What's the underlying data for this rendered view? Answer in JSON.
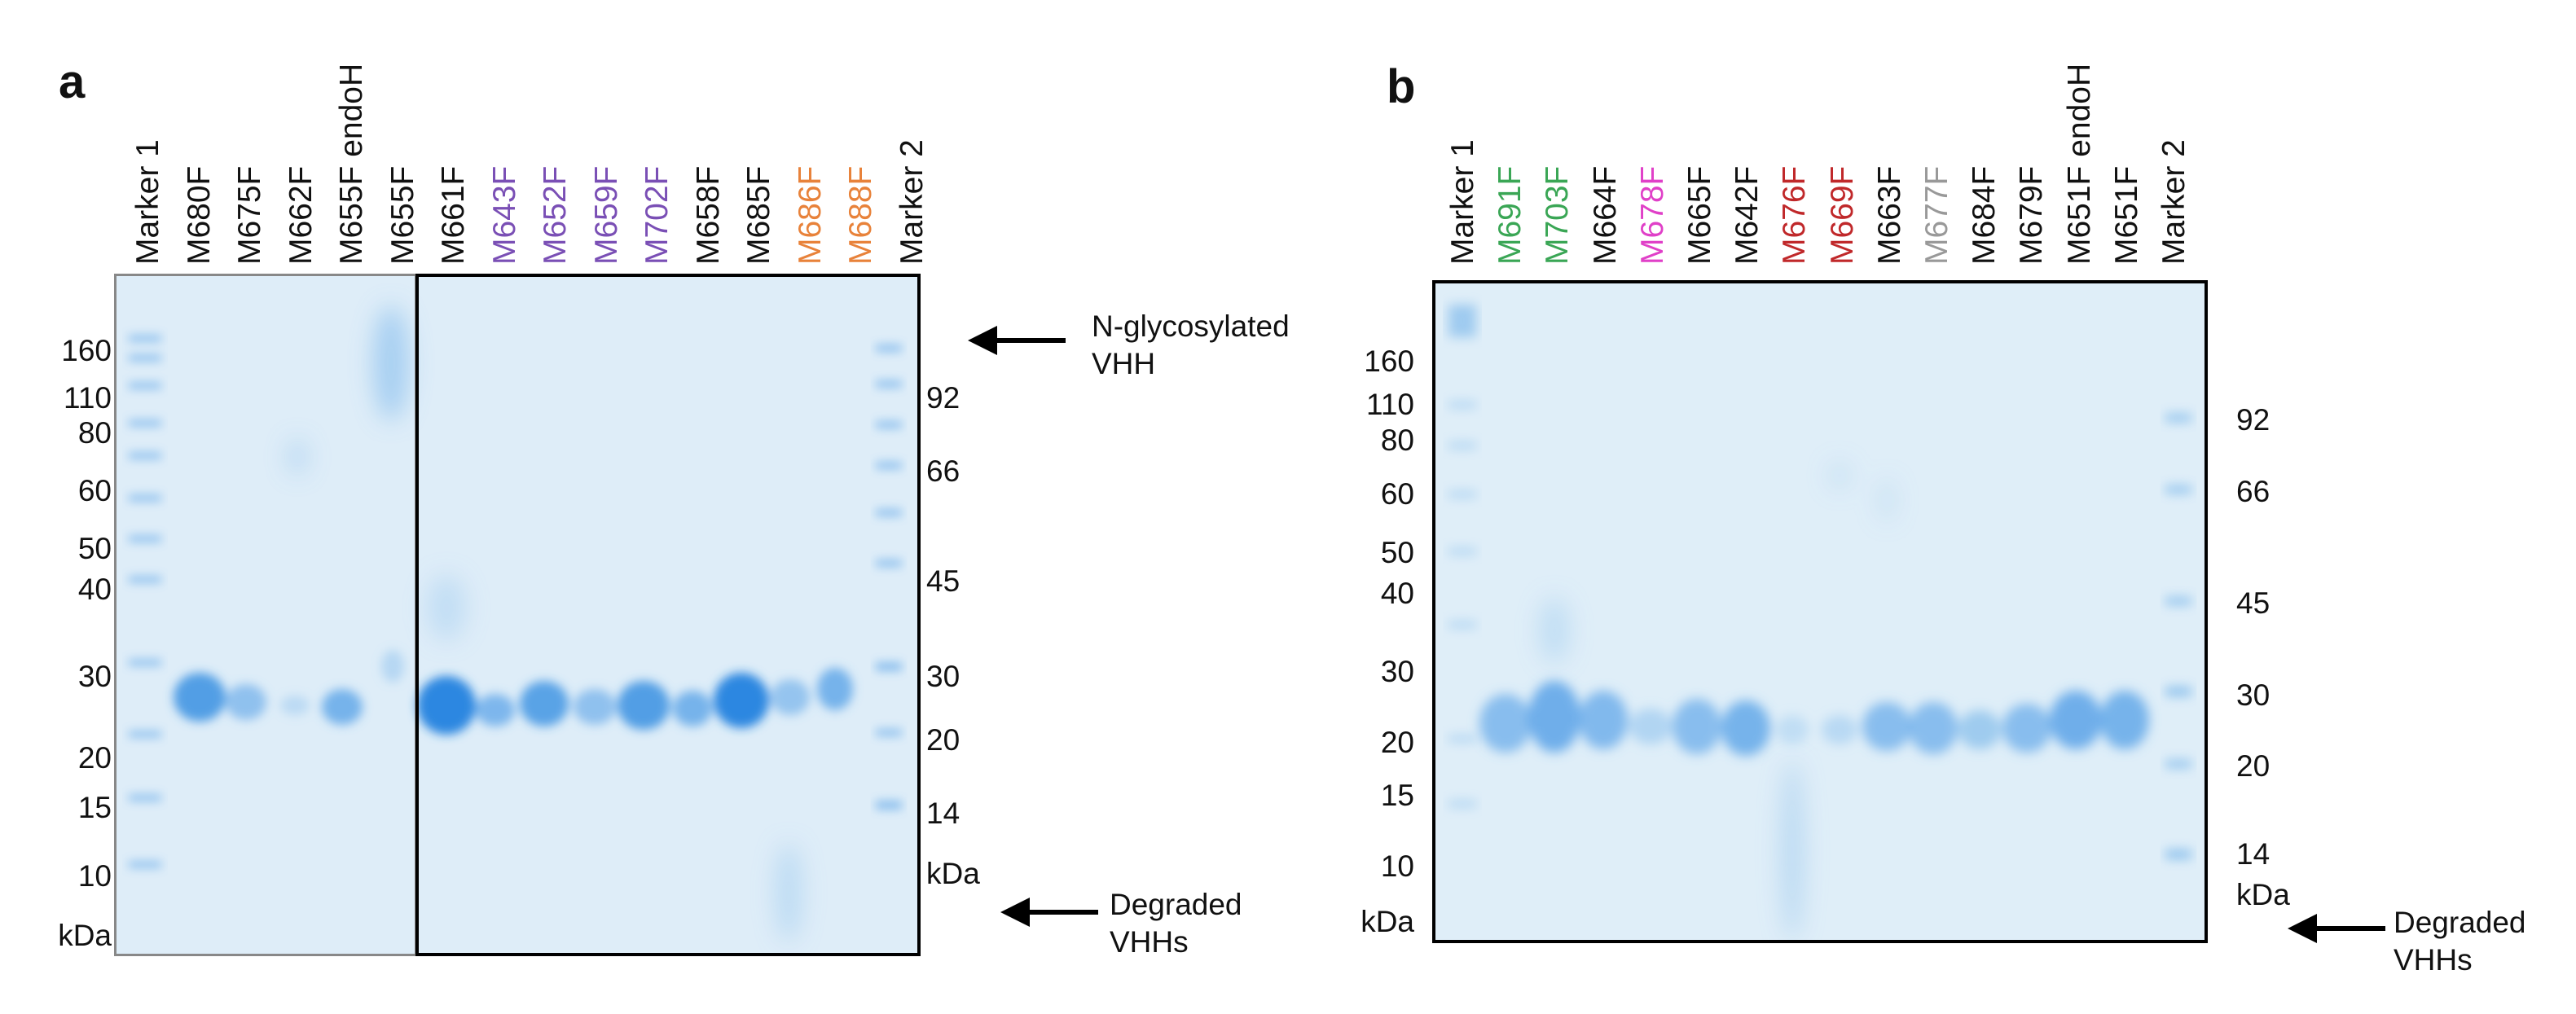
{
  "panels": [
    {
      "letter": "a",
      "lanes": [
        {
          "label": "Marker 1",
          "color": "#111111"
        },
        {
          "label": "M680F",
          "color": "#111111"
        },
        {
          "label": "M675F",
          "color": "#111111"
        },
        {
          "label": "M662F",
          "color": "#111111"
        },
        {
          "label": "M655F endoH",
          "color": "#111111"
        },
        {
          "label": "M655F",
          "color": "#111111"
        },
        {
          "label": "M661F",
          "color": "#111111"
        },
        {
          "label": "M643F",
          "color": "#7a4fb5"
        },
        {
          "label": "M652F",
          "color": "#7a4fb5"
        },
        {
          "label": "M659F",
          "color": "#7a4fb5"
        },
        {
          "label": "M702F",
          "color": "#7a4fb5"
        },
        {
          "label": "M658F",
          "color": "#111111"
        },
        {
          "label": "M685F",
          "color": "#111111"
        },
        {
          "label": "M686F",
          "color": "#e8823a"
        },
        {
          "label": "M688F",
          "color": "#e8823a"
        },
        {
          "label": "Marker 2",
          "color": "#111111"
        }
      ],
      "marker1_kda": [
        "160",
        "110",
        "80",
        "60",
        "50",
        "40",
        "30",
        "20",
        "15",
        "10"
      ],
      "marker1_unit": "kDa",
      "marker2_kda": [
        "92",
        "66",
        "45",
        "30",
        "20",
        "14"
      ],
      "marker2_unit": "kDa",
      "annotations": {
        "top": "N-glycosylated\nVHH",
        "bottom": "Degraded\nVHHs"
      }
    },
    {
      "letter": "b",
      "lanes": [
        {
          "label": "Marker 1",
          "color": "#111111"
        },
        {
          "label": "M691F",
          "color": "#3aa655"
        },
        {
          "label": "M703F",
          "color": "#3aa655"
        },
        {
          "label": "M664F",
          "color": "#111111"
        },
        {
          "label": "M678F",
          "color": "#e040c8"
        },
        {
          "label": "M665F",
          "color": "#111111"
        },
        {
          "label": "M642F",
          "color": "#111111"
        },
        {
          "label": "M676F",
          "color": "#c0282a"
        },
        {
          "label": "M669F",
          "color": "#c0282a"
        },
        {
          "label": "M663F",
          "color": "#111111"
        },
        {
          "label": "M677F",
          "color": "#999999"
        },
        {
          "label": "M684F",
          "color": "#111111"
        },
        {
          "label": "M679F",
          "color": "#111111"
        },
        {
          "label": "M651F endoH",
          "color": "#111111"
        },
        {
          "label": "M651F",
          "color": "#111111"
        },
        {
          "label": "Marker 2",
          "color": "#111111"
        }
      ],
      "marker1_kda": [
        "160",
        "110",
        "80",
        "60",
        "50",
        "40",
        "30",
        "20",
        "15",
        "10"
      ],
      "marker1_unit": "kDa",
      "marker2_kda": [
        "92",
        "66",
        "45",
        "30",
        "20",
        "14"
      ],
      "marker2_unit": "kDa",
      "annotations": {
        "bottom": "Degraded\nVHHs"
      }
    }
  ],
  "colors": {
    "gel_background": "#dfeef8",
    "band": "#3d8fe0",
    "marker_band": "#6aaee8"
  }
}
